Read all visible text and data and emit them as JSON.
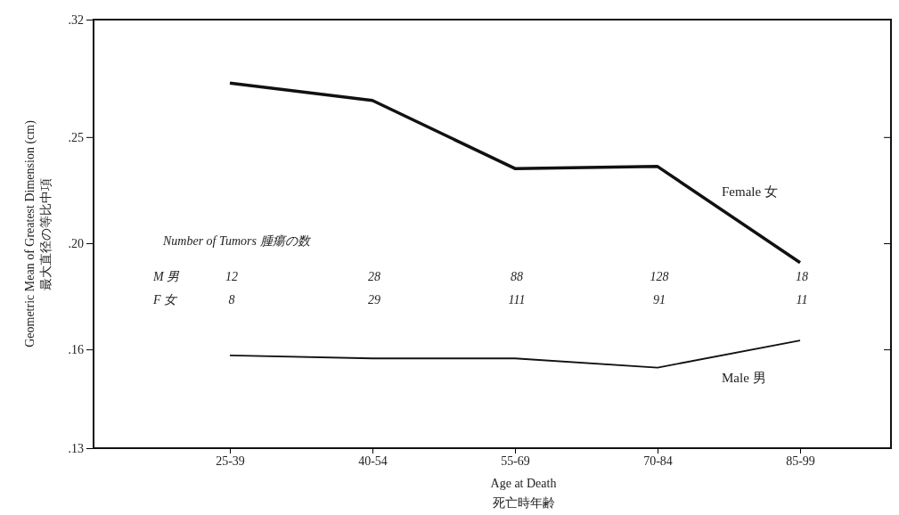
{
  "chart_data": {
    "type": "line",
    "xlabel": "Age at Death\n死亡時年齢",
    "ylabel": "Geometric Mean of Greatest Dimension (cm)\n最大直径の等比中項",
    "categories": [
      "25-39",
      "40-54",
      "55-69",
      "70-84",
      "85-99"
    ],
    "log": true,
    "ylim": [
      0.13,
      0.32
    ],
    "yticks": [
      {
        "value": 0.13,
        "label": ".13"
      },
      {
        "value": 0.16,
        "label": ".16"
      },
      {
        "value": 0.2,
        "label": ".20"
      },
      {
        "value": 0.25,
        "label": ".25"
      },
      {
        "value": 0.32,
        "label": ".32"
      }
    ],
    "grid": false,
    "legend": false,
    "marker": "none",
    "series": [
      {
        "name": "Female 女",
        "color": "#111111",
        "values": [
          0.28,
          0.27,
          0.234,
          0.235,
          0.192
        ]
      },
      {
        "name": "Male 男",
        "color": "#111111",
        "values": [
          0.158,
          0.157,
          0.157,
          0.154,
          0.163
        ]
      }
    ],
    "annotations": [
      "Number of Tumors 腫瘍の数",
      "M 男",
      "F 女",
      "12",
      "28",
      "88",
      "128",
      "18",
      "8",
      "29",
      "111",
      "91",
      "11"
    ]
  }
}
